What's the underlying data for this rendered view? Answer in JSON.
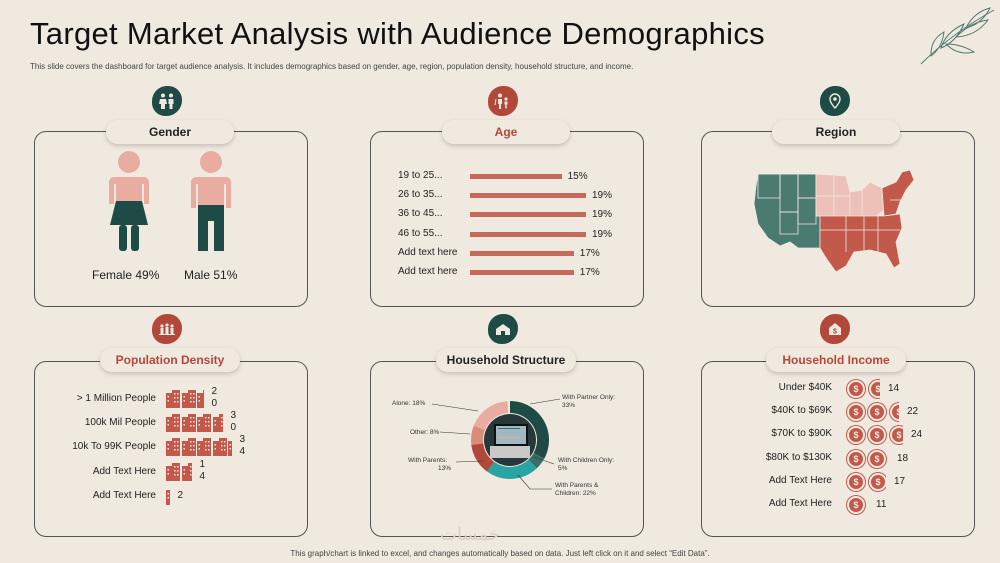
{
  "header": {
    "title": "Target Market Analysis with Audience Demographics",
    "subtitle": "This slide covers the dashboard for target audience analysis. It includes demographics based on gender, age, region, population density, household structure, and income."
  },
  "footer": "This graph/chart is linked to excel, and changes automatically based on data. Just left click on it and select “Edit Data”.",
  "colors": {
    "accent": "#b2483a",
    "dark_green": "#1e4b45",
    "pink": "#e8ada0",
    "background": "#f0e9e0"
  },
  "gender": {
    "title": "Gender",
    "female_label": "Female 49%",
    "male_label": "Male 51%",
    "female_pct": 49,
    "male_pct": 51
  },
  "age": {
    "title": "Age",
    "rows": [
      {
        "label": "19 to 25...",
        "value": "15%",
        "pct": 15
      },
      {
        "label": "26 to 35...",
        "value": "19%",
        "pct": 19
      },
      {
        "label": "36 to 45...",
        "value": "19%",
        "pct": 19
      },
      {
        "label": "46 to 55...",
        "value": "19%",
        "pct": 19
      },
      {
        "label": "Add text here",
        "value": "17%",
        "pct": 17
      },
      {
        "label": "Add text here",
        "value": "17%",
        "pct": 17
      }
    ]
  },
  "region": {
    "title": "Region"
  },
  "population_density": {
    "title": "Population Density",
    "rows": [
      {
        "label": "> 1 Million People",
        "value_a": "2",
        "value_b": "0",
        "count": 20
      },
      {
        "label": "100k Mil People",
        "value_a": "3",
        "value_b": "0",
        "count": 30
      },
      {
        "label": "10k To 99K People",
        "value_a": "3",
        "value_b": "4",
        "count": 34
      },
      {
        "label": "Add Text Here",
        "value_a": "1",
        "value_b": "4",
        "count": 14
      },
      {
        "label": "Add Text Here",
        "value_a": "2",
        "value_b": "",
        "count": 2
      }
    ]
  },
  "household_structure": {
    "title": "Household Structure",
    "labels": {
      "alone": "Alone: 18%",
      "other": "Other: 8%",
      "with_parents_1": "With Parents:",
      "with_parents_2": "13%",
      "with_partner_1": "With Partner Only:",
      "with_partner_2": "33%",
      "with_children_1": "With Children Only:",
      "with_children_2": "5%",
      "with_parents_children_1": "With Parents &",
      "with_parents_children_2": "Children: 22%"
    },
    "segments": [
      {
        "name": "With Partner Only",
        "pct": 33,
        "color": "#1e4b45"
      },
      {
        "name": "With Children Only",
        "pct": 5,
        "color": "#3a6f68"
      },
      {
        "name": "With Parents & Children",
        "pct": 22,
        "color": "#2aa3a3"
      },
      {
        "name": "With Parents",
        "pct": 13,
        "color": "#b2483a"
      },
      {
        "name": "Other",
        "pct": 8,
        "color": "#d98c7a"
      },
      {
        "name": "Alone",
        "pct": 18,
        "color": "#e8ada0"
      }
    ]
  },
  "household_income": {
    "title": "Household Income",
    "rows": [
      {
        "label": "Under $40K",
        "value": "14",
        "coins": 1.6
      },
      {
        "label": "$40K to $69K",
        "value": "22",
        "coins": 2.5
      },
      {
        "label": "$70K to $90K",
        "value": "24",
        "coins": 2.7
      },
      {
        "label": "$80K to $130K",
        "value": "18",
        "coins": 2.0
      },
      {
        "label": "Add Text Here",
        "value": "17",
        "coins": 1.9
      },
      {
        "label": "Add Text Here",
        "value": "11",
        "coins": 1.0
      }
    ]
  },
  "watermark": "خمسات"
}
